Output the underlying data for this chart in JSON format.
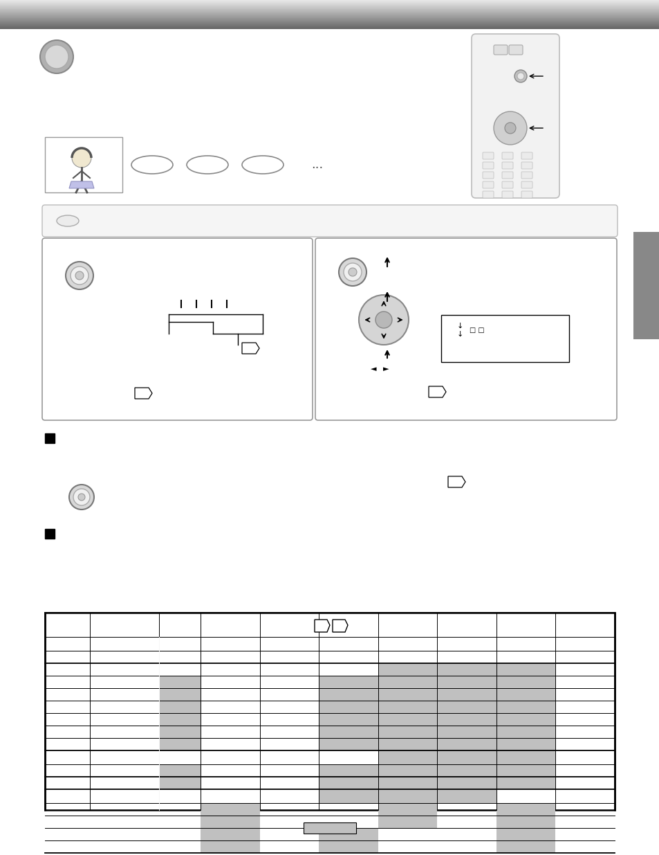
{
  "bg_color": "#ffffff",
  "gray_sidebar_color": "#888888",
  "table_gray_color": "#c0c0c0",
  "header_dark": "#666666",
  "header_light": "#e8e8e8",
  "panel_border": "#999999",
  "remote_body": "#f2f2f2",
  "remote_border": "#bbbbbb"
}
